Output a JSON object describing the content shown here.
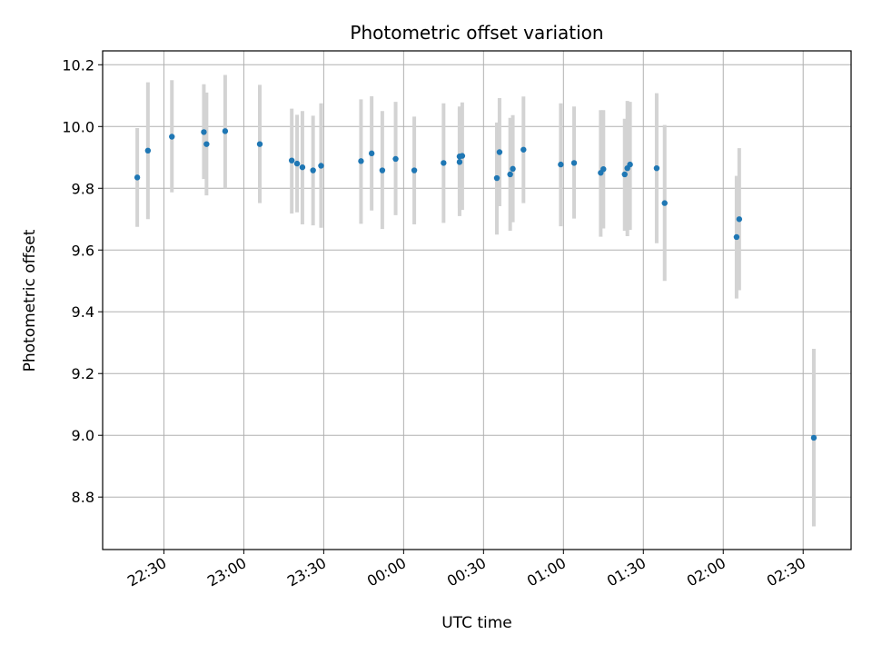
{
  "chart_data": {
    "type": "scatter",
    "title": "Photometric offset variation",
    "xlabel": "UTC time",
    "ylabel": "Photometric offset",
    "x_ticks": [
      "22:30",
      "23:00",
      "23:30",
      "00:00",
      "00:30",
      "01:00",
      "01:30",
      "02:00",
      "02:30"
    ],
    "y_ticks": [
      "8.8",
      "9.0",
      "9.2",
      "9.4",
      "9.6",
      "9.8",
      "10.0",
      "10.2"
    ],
    "grid": true,
    "colors": {
      "point": "#1f77b4",
      "errorbar": "#d3d3d3",
      "grid": "#b0b0b0"
    },
    "xlim": [
      "22:07",
      "02:48"
    ],
    "ylim": [
      8.63,
      10.245
    ],
    "series": [
      {
        "points": [
          {
            "t": "22:20",
            "y": 9.835,
            "lo": 9.675,
            "hi": 9.995
          },
          {
            "t": "22:24",
            "y": 9.922,
            "lo": 9.7,
            "hi": 10.143
          },
          {
            "t": "22:33",
            "y": 9.967,
            "lo": 9.787,
            "hi": 10.15
          },
          {
            "t": "22:45",
            "y": 9.982,
            "lo": 9.83,
            "hi": 10.137
          },
          {
            "t": "22:46",
            "y": 9.943,
            "lo": 9.777,
            "hi": 10.11
          },
          {
            "t": "22:53",
            "y": 9.985,
            "lo": 9.8,
            "hi": 10.167
          },
          {
            "t": "23:06",
            "y": 9.943,
            "lo": 9.752,
            "hi": 10.135
          },
          {
            "t": "23:18",
            "y": 9.89,
            "lo": 9.718,
            "hi": 10.058
          },
          {
            "t": "23:20",
            "y": 9.88,
            "lo": 9.722,
            "hi": 10.038
          },
          {
            "t": "23:22",
            "y": 9.868,
            "lo": 9.683,
            "hi": 10.05
          },
          {
            "t": "23:26",
            "y": 9.858,
            "lo": 9.68,
            "hi": 10.035
          },
          {
            "t": "23:29",
            "y": 9.873,
            "lo": 9.672,
            "hi": 10.075
          },
          {
            "t": "23:44",
            "y": 9.888,
            "lo": 9.685,
            "hi": 10.088
          },
          {
            "t": "23:48",
            "y": 9.913,
            "lo": 9.728,
            "hi": 10.098
          },
          {
            "t": "23:52",
            "y": 9.858,
            "lo": 9.668,
            "hi": 10.05
          },
          {
            "t": "23:57",
            "y": 9.895,
            "lo": 9.713,
            "hi": 10.08
          },
          {
            "t": "00:04",
            "y": 9.858,
            "lo": 9.683,
            "hi": 10.032
          },
          {
            "t": "00:15",
            "y": 9.882,
            "lo": 9.688,
            "hi": 10.075
          },
          {
            "t": "00:21",
            "y": 9.903,
            "lo": 9.735,
            "hi": 10.065
          },
          {
            "t": "00:21",
            "y": 9.885,
            "lo": 9.71,
            "hi": 10.06
          },
          {
            "t": "00:22",
            "y": 9.905,
            "lo": 9.73,
            "hi": 10.078
          },
          {
            "t": "00:35",
            "y": 9.833,
            "lo": 9.65,
            "hi": 10.013
          },
          {
            "t": "00:36",
            "y": 9.917,
            "lo": 9.742,
            "hi": 10.092
          },
          {
            "t": "00:40",
            "y": 9.845,
            "lo": 9.662,
            "hi": 10.028
          },
          {
            "t": "00:41",
            "y": 9.863,
            "lo": 9.69,
            "hi": 10.037
          },
          {
            "t": "00:45",
            "y": 9.925,
            "lo": 9.752,
            "hi": 10.097
          },
          {
            "t": "00:59",
            "y": 9.877,
            "lo": 9.677,
            "hi": 10.075
          },
          {
            "t": "01:04",
            "y": 9.882,
            "lo": 9.702,
            "hi": 10.065
          },
          {
            "t": "01:14",
            "y": 9.85,
            "lo": 9.643,
            "hi": 10.053
          },
          {
            "t": "01:15",
            "y": 9.862,
            "lo": 9.67,
            "hi": 10.053
          },
          {
            "t": "01:23",
            "y": 9.845,
            "lo": 9.662,
            "hi": 10.025
          },
          {
            "t": "01:24",
            "y": 9.865,
            "lo": 9.645,
            "hi": 10.083
          },
          {
            "t": "01:25",
            "y": 9.877,
            "lo": 9.665,
            "hi": 10.08
          },
          {
            "t": "01:35",
            "y": 9.865,
            "lo": 9.622,
            "hi": 10.108
          },
          {
            "t": "01:38",
            "y": 9.752,
            "lo": 9.5,
            "hi": 10.005
          },
          {
            "t": "02:05",
            "y": 9.642,
            "lo": 9.443,
            "hi": 9.84
          },
          {
            "t": "02:06",
            "y": 9.7,
            "lo": 9.47,
            "hi": 9.93
          },
          {
            "t": "02:34",
            "y": 8.992,
            "lo": 8.705,
            "hi": 9.28
          }
        ]
      }
    ]
  }
}
